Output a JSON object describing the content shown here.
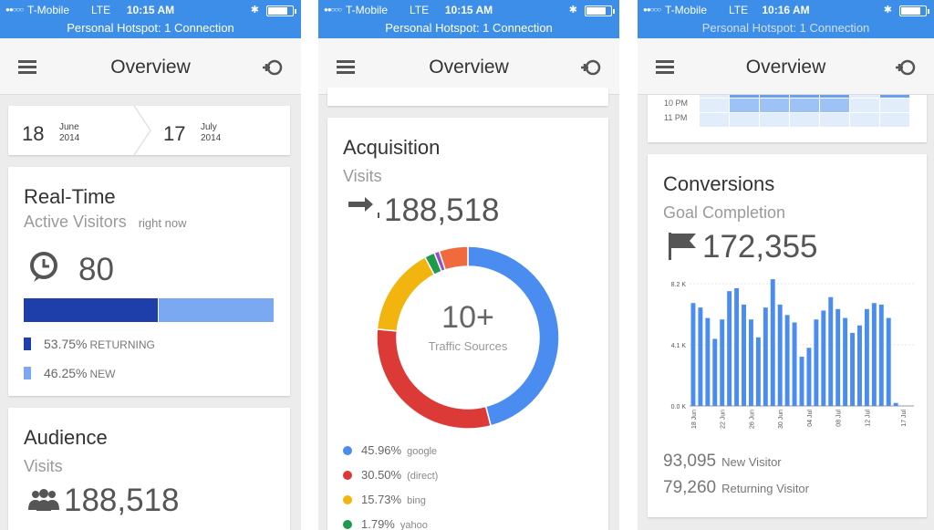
{
  "status": {
    "carrier": "T-Mobile",
    "network": "LTE",
    "time1": "10:15 AM",
    "time2": "10:15 AM",
    "time3": "10:16 AM",
    "hotspot": "Personal Hotspot: 1 Connection"
  },
  "appbar": {
    "title": "Overview"
  },
  "date_range": {
    "start_day": "18",
    "start_month": "June",
    "start_year": "2014",
    "end_day": "17",
    "end_month": "July",
    "end_year": "2014"
  },
  "realtime": {
    "title": "Real-Time",
    "subtitle": "Active Visitors",
    "subtitle_note": "right now",
    "value": "80",
    "returning_pct": 53.75,
    "returning_value": "53.75%",
    "returning_label": "RETURNING",
    "new_value": "46.25%",
    "new_label": "NEW",
    "colors": {
      "returning": "#1e3eaa",
      "new": "#7aa9f1"
    }
  },
  "audience": {
    "title": "Audience",
    "subtitle": "Visits",
    "value": "188,518"
  },
  "acquisition": {
    "title": "Acquisition",
    "subtitle": "Visits",
    "value": "188,518",
    "center_value": "10+",
    "center_label": "Traffic Sources",
    "sources": [
      {
        "pct": "45.96%",
        "name": "google",
        "value": 45.96,
        "color": "#4a8cf0"
      },
      {
        "pct": "30.50%",
        "name": "(direct)",
        "value": 30.5,
        "color": "#dc3a37"
      },
      {
        "pct": "15.73%",
        "name": "bing",
        "value": 15.73,
        "color": "#f2b50f"
      },
      {
        "pct": "1.79%",
        "name": "yahoo",
        "value": 1.79,
        "color": "#1e9a4f"
      }
    ],
    "other_slices": [
      {
        "value": 0.9,
        "color": "#9c4fc4"
      },
      {
        "value": 5.12,
        "color": "#f16a3e"
      }
    ]
  },
  "heatmap": {
    "rows": [
      "10 PM",
      "11 PM"
    ],
    "row0_fill": [
      false,
      true,
      true,
      true,
      true,
      false,
      false
    ],
    "row1_fill": [
      false,
      false,
      false,
      false,
      false,
      false,
      false
    ]
  },
  "conversions": {
    "title": "Conversions",
    "subtitle": "Goal Completion",
    "value": "172,355",
    "stat1_value": "93,095",
    "stat1_label": "New Visitor",
    "stat2_value": "79,260",
    "stat2_label": "Returning Visitor"
  },
  "chart_data": {
    "type": "bar",
    "title": "",
    "xlabel": "",
    "ylabel": "",
    "yticks": [
      "8.2 K",
      "4.1 K",
      "0.0 K"
    ],
    "ylim": [
      0,
      8.2
    ],
    "xticks": [
      "18 Jun",
      "22 Jun",
      "26 Jun",
      "30 Jun",
      "04 Jul",
      "08 Jul",
      "12 Jul",
      "17 Jul"
    ],
    "color": "#4a8cf0",
    "grid": true,
    "values": [
      6.9,
      6.6,
      5.9,
      4.5,
      5.8,
      7.7,
      7.9,
      6.8,
      5.8,
      4.6,
      6.6,
      8.5,
      6.8,
      6.1,
      5.6,
      3.3,
      3.9,
      5.8,
      6.4,
      7.3,
      6.5,
      5.9,
      4.9,
      5.4,
      6.5,
      6.9,
      6.8,
      5.9,
      0.2,
      0,
      0
    ]
  }
}
